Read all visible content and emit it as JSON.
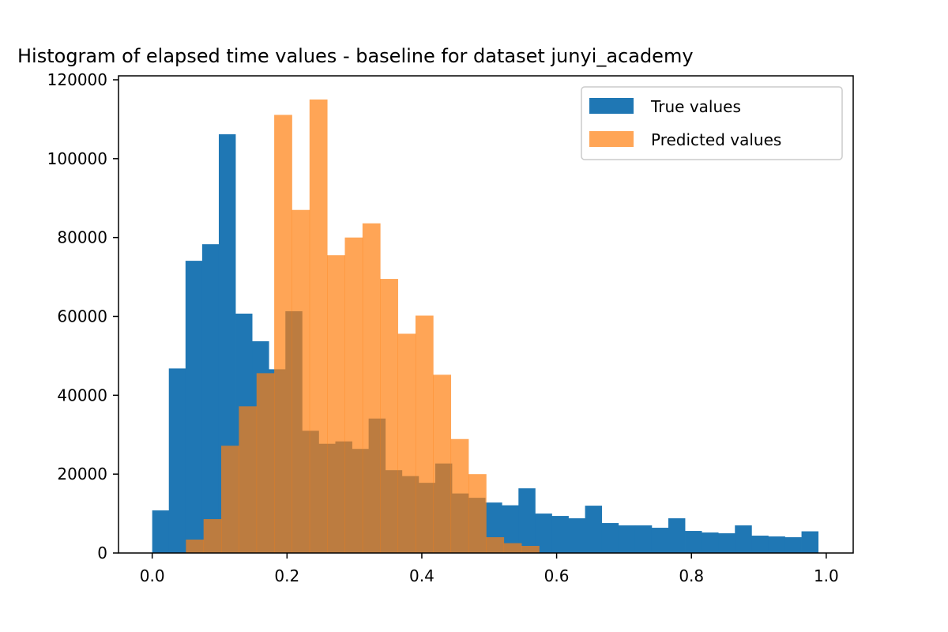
{
  "chart_data": {
    "type": "bar",
    "title": "Histogram of elapsed time values - baseline for dataset junyi_academy",
    "xlabel": "",
    "ylabel": "",
    "xlim": [
      -0.05,
      1.04
    ],
    "ylim": [
      0,
      121000
    ],
    "x_ticks": [
      0.0,
      0.2,
      0.4,
      0.6,
      0.8,
      1.0
    ],
    "x_tick_labels": [
      "0.0",
      "0.2",
      "0.4",
      "0.6",
      "0.8",
      "1.0"
    ],
    "y_ticks": [
      0,
      20000,
      40000,
      60000,
      80000,
      100000,
      120000
    ],
    "y_tick_labels": [
      "0",
      "20000",
      "40000",
      "60000",
      "80000",
      "100000",
      "120000"
    ],
    "grid": false,
    "legend_position": "top-right",
    "series": [
      {
        "name": "True values",
        "color": "#1f77b4",
        "opacity": 1.0,
        "bin_edges": [
          0.0,
          0.0247,
          0.0494,
          0.0741,
          0.0988,
          0.1235,
          0.1482,
          0.1729,
          0.1976,
          0.2223,
          0.247,
          0.2717,
          0.2964,
          0.3211,
          0.3458,
          0.3705,
          0.3952,
          0.4199,
          0.4446,
          0.4693,
          0.494,
          0.5187,
          0.5434,
          0.5681,
          0.5928,
          0.6175,
          0.6422,
          0.6669,
          0.6916,
          0.7163,
          0.741,
          0.7657,
          0.7904,
          0.8151,
          0.8398,
          0.8645,
          0.8892,
          0.9139,
          0.9386,
          0.9633,
          0.988
        ],
        "values": [
          10800,
          46800,
          74100,
          78300,
          106200,
          60700,
          53700,
          46600,
          61300,
          31000,
          27700,
          28300,
          26400,
          34100,
          21000,
          19500,
          17800,
          22700,
          15100,
          14000,
          12800,
          12100,
          16400,
          10000,
          9400,
          8800,
          12000,
          7600,
          7000,
          7000,
          6400,
          8800,
          5600,
          5200,
          5000,
          7000,
          4400,
          4200,
          4000,
          5500
        ]
      },
      {
        "name": "Predicted values",
        "color": "#ff7f0e",
        "opacity": 0.7,
        "bin_edges": [
          0.05,
          0.0762,
          0.1024,
          0.1286,
          0.1548,
          0.181,
          0.2072,
          0.2334,
          0.2596,
          0.2858,
          0.312,
          0.3382,
          0.3644,
          0.3906,
          0.4168,
          0.443,
          0.4692,
          0.4954,
          0.5216,
          0.5478,
          0.574
        ],
        "values": [
          3400,
          8600,
          27200,
          37200,
          45600,
          111100,
          87000,
          115000,
          75500,
          80000,
          83600,
          69500,
          55600,
          60200,
          45200,
          28900,
          20000,
          4000,
          2500,
          1800
        ]
      }
    ]
  }
}
